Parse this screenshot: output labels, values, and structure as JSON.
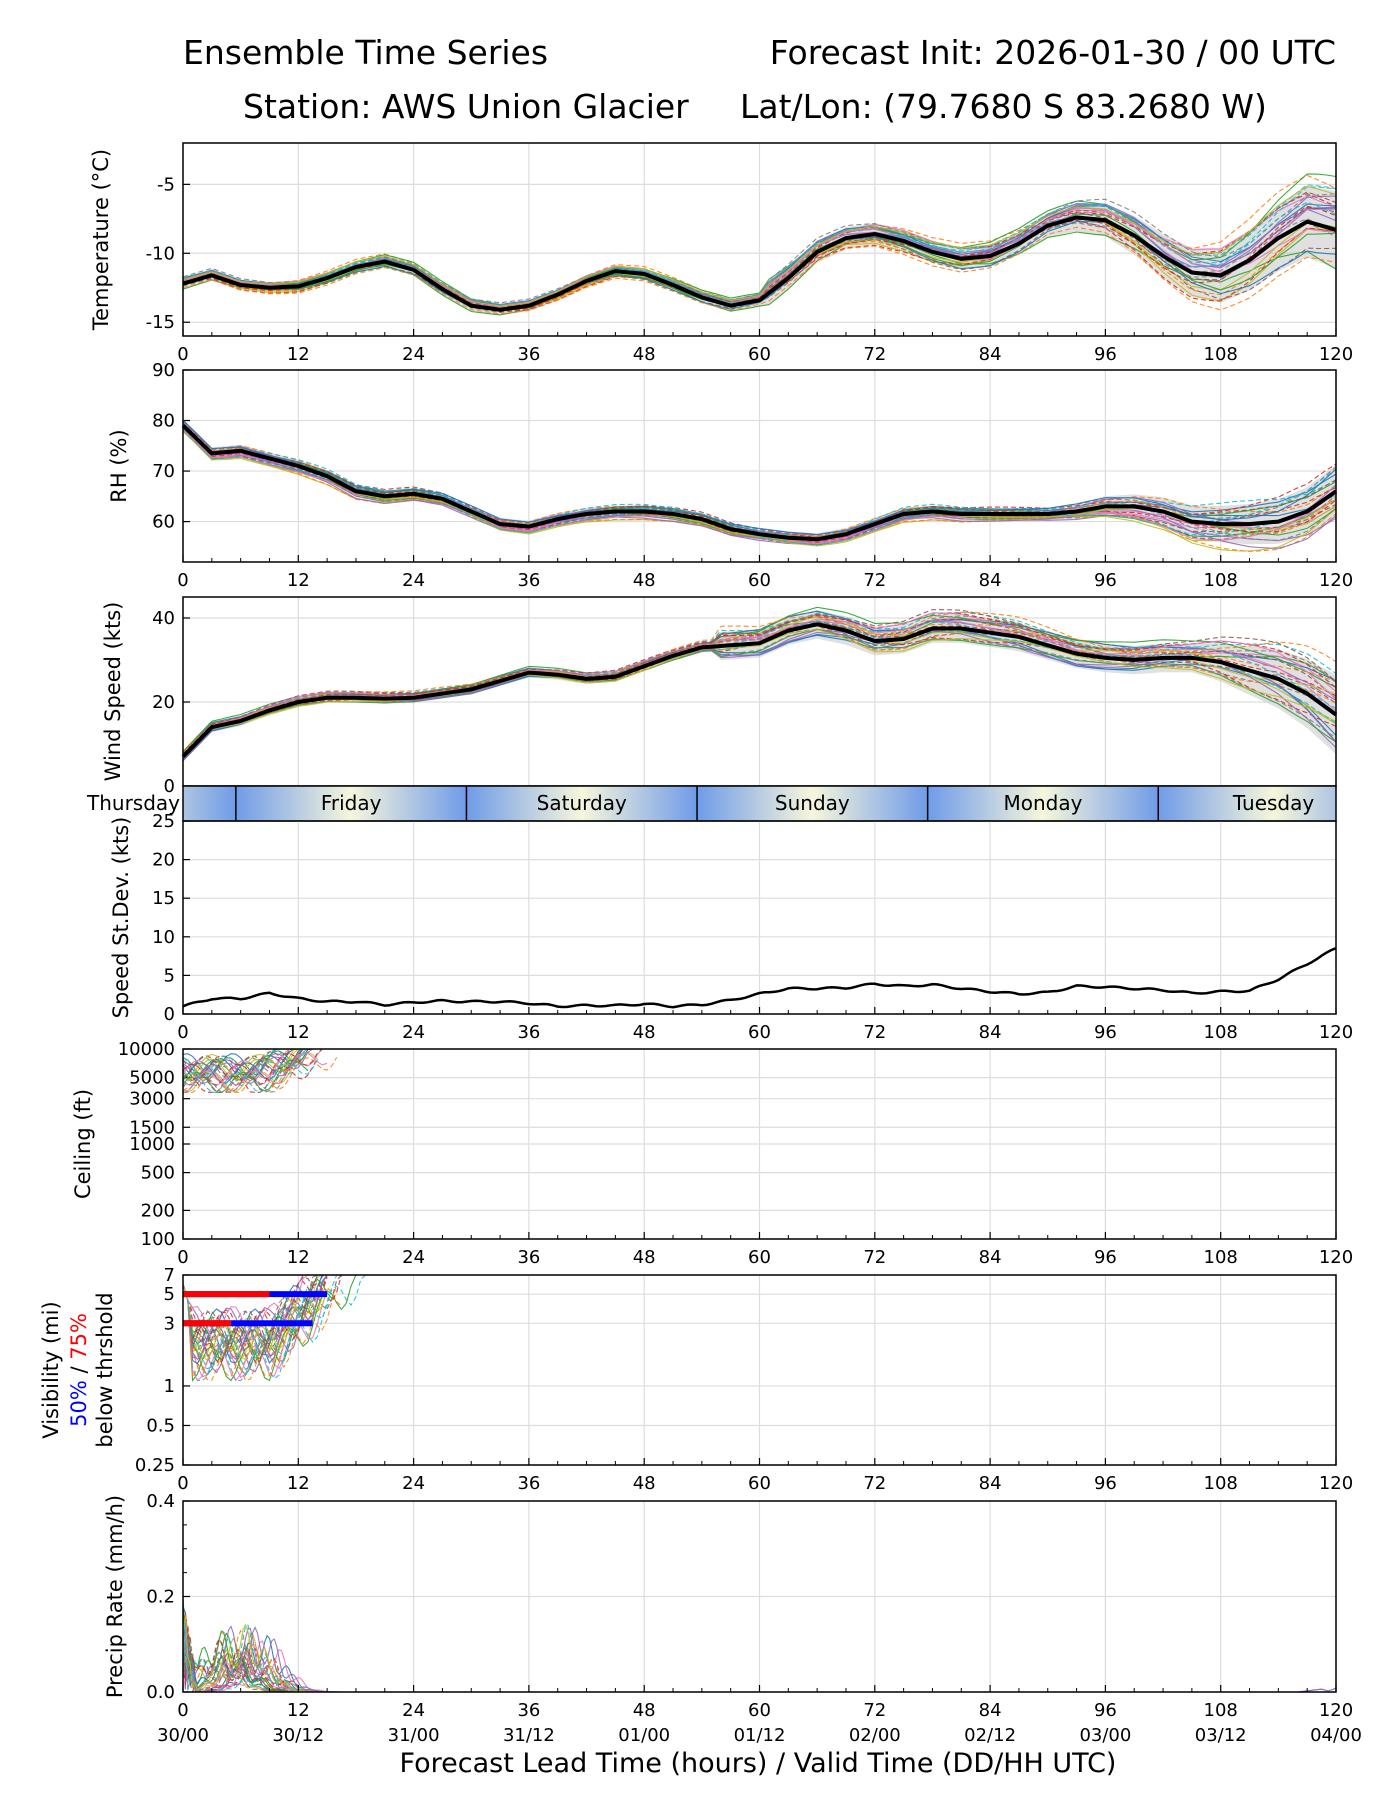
{
  "header": {
    "title_left": "Ensemble Time Series",
    "title_right": "Forecast Init: 2026-01-30 / 00 UTC",
    "station": "Station: AWS Union Glacier",
    "latlon": "Lat/Lon: (79.7680 S 83.2680 W)"
  },
  "colors": {
    "mean": "#000000",
    "threshold_50": "#0000ff",
    "threshold_75": "#ff0000",
    "day_band_blue": "#6f9be8",
    "day_band_cream": "#f6f6dc",
    "members": [
      "#1f77b4",
      "#ff7f0e",
      "#2ca02c",
      "#d62728",
      "#9467bd",
      "#8c564b",
      "#e377c2",
      "#7f7f7f",
      "#bcbd22",
      "#17becf"
    ]
  },
  "xlabel": "Forecast Lead Time (hours) / Valid Time (DD/HH UTC)",
  "x_ticks": [
    0,
    12,
    24,
    36,
    48,
    60,
    72,
    84,
    96,
    108,
    120
  ],
  "valid_time_labels": [
    "30/00",
    "30/12",
    "31/00",
    "31/12",
    "01/00",
    "01/12",
    "02/00",
    "02/12",
    "03/00",
    "03/12",
    "04/00"
  ],
  "day_band": {
    "labels": [
      "Thursday",
      "Friday",
      "Saturday",
      "Sunday",
      "Monday",
      "Tuesday"
    ],
    "boundaries_hours": [
      5.5,
      29.5,
      53.5,
      77.5,
      101.5
    ]
  },
  "chart_data": [
    {
      "id": "temperature",
      "type": "line",
      "ylabel": "Temperature (°C)",
      "xlim": [
        0,
        120
      ],
      "ylim": [
        -16,
        -2
      ],
      "yticks": [
        -15,
        -10,
        -5
      ],
      "members": 30,
      "series": [
        {
          "name": "ensemble mean",
          "x": [
            0,
            3,
            6,
            9,
            12,
            15,
            18,
            21,
            24,
            27,
            30,
            33,
            36,
            39,
            42,
            45,
            48,
            51,
            54,
            57,
            60,
            63,
            66,
            69,
            72,
            75,
            78,
            81,
            84,
            87,
            90,
            93,
            96,
            99,
            102,
            105,
            108,
            111,
            114,
            117,
            120
          ],
          "values": [
            -12.2,
            -11.6,
            -12.3,
            -12.5,
            -12.4,
            -11.8,
            -11.0,
            -10.6,
            -11.2,
            -12.6,
            -13.8,
            -14.1,
            -13.8,
            -13.0,
            -12.0,
            -11.3,
            -11.5,
            -12.3,
            -13.2,
            -13.8,
            -13.4,
            -11.8,
            -9.9,
            -8.9,
            -8.6,
            -9.1,
            -9.9,
            -10.4,
            -10.2,
            -9.3,
            -8.0,
            -7.4,
            -7.6,
            -8.7,
            -10.2,
            -11.4,
            -11.6,
            -10.5,
            -8.9,
            -7.7,
            -8.3
          ]
        }
      ]
    },
    {
      "id": "rh",
      "type": "line",
      "ylabel": "RH (%)",
      "xlim": [
        0,
        120
      ],
      "ylim": [
        52,
        90
      ],
      "yticks": [
        60,
        70,
        80,
        90
      ],
      "members": 30,
      "series": [
        {
          "name": "ensemble mean",
          "x": [
            0,
            3,
            6,
            9,
            12,
            15,
            18,
            21,
            24,
            27,
            30,
            33,
            36,
            39,
            42,
            45,
            48,
            51,
            54,
            57,
            60,
            63,
            66,
            69,
            72,
            75,
            78,
            81,
            84,
            87,
            90,
            93,
            96,
            99,
            102,
            105,
            108,
            111,
            114,
            117,
            120
          ],
          "values": [
            79.0,
            73.5,
            74.0,
            72.5,
            71.0,
            69.0,
            66.0,
            65.0,
            65.5,
            64.5,
            62.0,
            59.5,
            59.0,
            60.5,
            61.5,
            62.0,
            62.0,
            61.5,
            60.5,
            58.5,
            57.5,
            56.8,
            56.5,
            57.5,
            59.5,
            61.5,
            62.0,
            61.5,
            61.5,
            61.5,
            61.5,
            62.0,
            63.0,
            63.0,
            62.0,
            60.0,
            59.5,
            59.5,
            60.0,
            62.0,
            66.0
          ]
        }
      ]
    },
    {
      "id": "wind",
      "type": "line",
      "ylabel": "Wind Speed (kts)",
      "xlim": [
        0,
        120
      ],
      "ylim": [
        0,
        45
      ],
      "yticks": [
        0,
        20,
        40
      ],
      "members": 30,
      "series": [
        {
          "name": "ensemble mean",
          "x": [
            0,
            3,
            6,
            9,
            12,
            15,
            18,
            21,
            24,
            27,
            30,
            33,
            36,
            39,
            42,
            45,
            48,
            51,
            54,
            57,
            60,
            63,
            66,
            69,
            72,
            75,
            78,
            81,
            84,
            87,
            90,
            93,
            96,
            99,
            102,
            105,
            108,
            111,
            114,
            117,
            120
          ],
          "values": [
            7.0,
            14.0,
            15.5,
            18.0,
            20.0,
            21.0,
            21.0,
            20.8,
            21.0,
            22.0,
            23.0,
            25.0,
            27.0,
            26.5,
            25.5,
            26.0,
            28.5,
            31.0,
            33.0,
            33.5,
            34.0,
            37.0,
            38.5,
            37.0,
            34.5,
            35.0,
            37.5,
            37.5,
            36.5,
            35.5,
            33.5,
            31.5,
            30.5,
            30.0,
            30.5,
            30.5,
            29.5,
            27.5,
            25.5,
            22.0,
            17.0
          ]
        }
      ]
    },
    {
      "id": "speed_stdev",
      "type": "line",
      "ylabel": "Speed St.Dev. (kts)",
      "xlim": [
        0,
        120
      ],
      "ylim": [
        0,
        25
      ],
      "yticks": [
        0,
        5,
        10,
        15,
        20,
        25
      ],
      "series": [
        {
          "name": "std dev",
          "x": [
            0,
            3,
            6,
            9,
            12,
            15,
            18,
            21,
            24,
            27,
            30,
            33,
            36,
            39,
            42,
            45,
            48,
            51,
            54,
            57,
            60,
            63,
            66,
            69,
            72,
            75,
            78,
            81,
            84,
            87,
            90,
            93,
            96,
            99,
            102,
            105,
            108,
            111,
            114,
            117,
            120
          ],
          "values": [
            1.0,
            2.0,
            2.0,
            2.7,
            2.0,
            1.6,
            1.6,
            1.2,
            1.5,
            1.7,
            1.6,
            1.6,
            1.4,
            1.0,
            1.1,
            1.1,
            1.3,
            1.0,
            1.2,
            1.8,
            2.6,
            3.3,
            3.3,
            3.4,
            3.9,
            3.6,
            3.8,
            3.3,
            2.9,
            2.6,
            2.8,
            3.6,
            3.5,
            3.3,
            3.1,
            2.7,
            2.9,
            3.0,
            4.5,
            6.5,
            8.5
          ]
        }
      ]
    },
    {
      "id": "ceiling",
      "type": "line",
      "ylabel": "Ceiling (ft)",
      "yscale": "log",
      "xlim": [
        0,
        120
      ],
      "ylim": [
        100,
        10000
      ],
      "yticks": [
        100,
        200,
        500,
        1000,
        1500,
        3000,
        5000,
        10000
      ],
      "members": 30,
      "member_x_range": [
        0,
        20
      ],
      "member_value_range": [
        3500,
        10000
      ]
    },
    {
      "id": "visibility",
      "type": "line",
      "ylabel": "Visibility (mi)",
      "yscale": "log",
      "ylabel_sub": [
        "50%",
        "/",
        "75%",
        "below thrshold"
      ],
      "xlim": [
        0,
        120
      ],
      "ylim": [
        0.25,
        7
      ],
      "yticks": [
        0.25,
        0.5,
        1,
        3,
        5,
        7
      ],
      "members": 30,
      "member_x_range": [
        0,
        21
      ],
      "member_value_range": [
        1.1,
        7
      ],
      "threshold_bars": [
        {
          "threshold": 5,
          "color": "blue",
          "x": [
            0,
            15
          ]
        },
        {
          "threshold": 5,
          "color": "red",
          "x": [
            0,
            9
          ]
        },
        {
          "threshold": 3,
          "color": "blue",
          "x": [
            0,
            13.5
          ]
        },
        {
          "threshold": 3,
          "color": "red",
          "x": [
            0,
            5
          ]
        }
      ]
    },
    {
      "id": "precip",
      "type": "line",
      "ylabel": "Precip Rate (mm/h)",
      "xlim": [
        0,
        120
      ],
      "ylim": [
        0,
        0.4
      ],
      "yticks": [
        0.0,
        0.2,
        0.4
      ],
      "ytick_labels": [
        "0.0",
        "0.2",
        "0.4"
      ],
      "members": 30,
      "member_x_range": [
        0,
        20
      ],
      "member_peak": 0.2
    }
  ]
}
